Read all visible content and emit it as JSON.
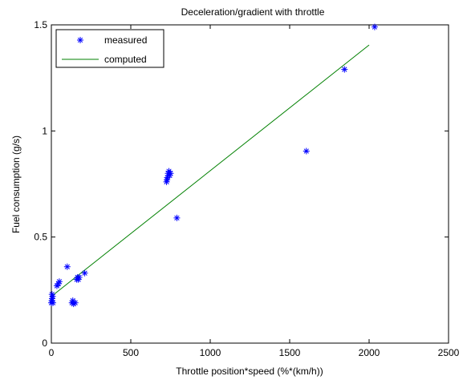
{
  "chart_data": {
    "type": "scatter",
    "title": "Deceleration/gradient with throttle",
    "xlabel": "Throttle position*speed (%*(km/h))",
    "ylabel": "Fuel consumption (g/s)",
    "xlim": [
      0,
      2500
    ],
    "ylim": [
      0,
      1.5
    ],
    "xticks": [
      0,
      500,
      1000,
      1500,
      2000,
      2500
    ],
    "yticks": [
      0,
      0.5,
      1,
      1.5
    ],
    "xtick_labels": [
      "0",
      "500",
      "1000",
      "1500",
      "2000",
      "2500"
    ],
    "ytick_labels": [
      "0",
      "0.5",
      "1",
      "1.5"
    ],
    "grid": false,
    "legend_position": "top-left",
    "series": [
      {
        "name": "measured",
        "type": "scatter",
        "marker": "asterisk",
        "color": "#0000ff",
        "points": [
          [
            0,
            0.19
          ],
          [
            3,
            0.2
          ],
          [
            5,
            0.21
          ],
          [
            8,
            0.22
          ],
          [
            4,
            0.23
          ],
          [
            10,
            0.19
          ],
          [
            35,
            0.27
          ],
          [
            45,
            0.28
          ],
          [
            50,
            0.29
          ],
          [
            100,
            0.36
          ],
          [
            130,
            0.19
          ],
          [
            140,
            0.185
          ],
          [
            150,
            0.19
          ],
          [
            135,
            0.2
          ],
          [
            160,
            0.3
          ],
          [
            165,
            0.31
          ],
          [
            170,
            0.3
          ],
          [
            175,
            0.31
          ],
          [
            210,
            0.33
          ],
          [
            725,
            0.76
          ],
          [
            730,
            0.78
          ],
          [
            735,
            0.8
          ],
          [
            740,
            0.81
          ],
          [
            745,
            0.79
          ],
          [
            750,
            0.8
          ],
          [
            728,
            0.77
          ],
          [
            790,
            0.59
          ],
          [
            1605,
            0.905
          ],
          [
            1845,
            1.29
          ],
          [
            2035,
            1.49
          ]
        ]
      },
      {
        "name": "computed",
        "type": "line",
        "color": "#008000",
        "points": [
          [
            0,
            0.22
          ],
          [
            2000,
            1.405
          ]
        ]
      }
    ]
  }
}
